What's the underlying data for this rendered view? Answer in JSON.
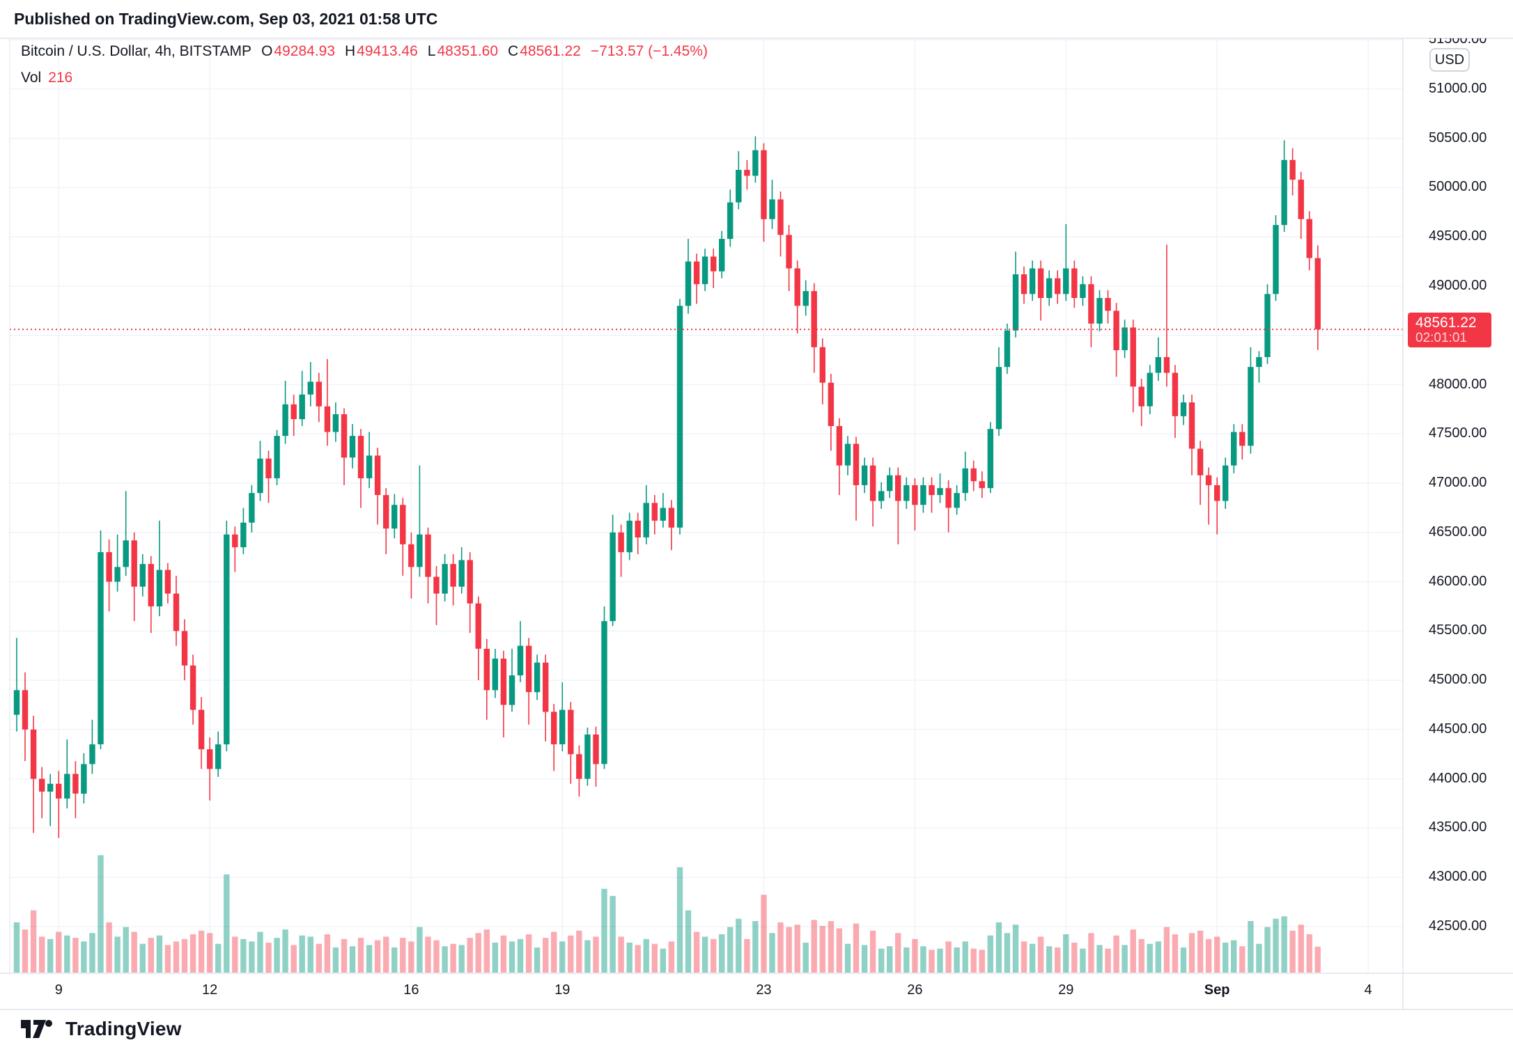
{
  "header": {
    "text": "Published on TradingView.com, Sep 03, 2021 01:58 UTC"
  },
  "legend": {
    "symbol": "Bitcoin / U.S. Dollar, 4h, BITSTAMP",
    "o_label": "O",
    "open": "49284.93",
    "h_label": "H",
    "high": "49413.46",
    "l_label": "L",
    "low": "48351.60",
    "c_label": "C",
    "close": "48561.22",
    "change": "−713.57 (−1.45%)",
    "vol_label": "Vol",
    "vol_value": "216"
  },
  "price_axis": {
    "currency": "USD",
    "last_price": "48561.22",
    "countdown": "02:01:01",
    "tick_labels": [
      51500,
      51000,
      50500,
      50000,
      49500,
      49000,
      48000,
      47500,
      47000,
      46500,
      46000,
      45500,
      45000,
      44500,
      44000,
      43500,
      43000,
      42500
    ]
  },
  "footer": {
    "brand": "TradingView"
  },
  "colors": {
    "up": "#089981",
    "down": "#f23645",
    "accent": "#f23645",
    "text": "#131722",
    "grid": "#f0f3fa",
    "border": "#e0e3eb",
    "vol_up": "rgba(8,153,129,0.45)",
    "vol_down": "rgba(242,54,69,0.42)"
  },
  "chart_data": {
    "type": "candlestick",
    "title": "Bitcoin / U.S. Dollar",
    "exchange": "BITSTAMP",
    "interval": "4h",
    "visible_range": "Aug 8 2021 04:00 UTC – Sep 4 2021",
    "current": {
      "open": 49284.93,
      "high": 49413.46,
      "low": 48351.6,
      "close": 48561.22,
      "change": -713.57,
      "change_pct": -1.45,
      "volume": 216
    },
    "y_axis": {
      "min": 42500,
      "max": 51500,
      "step": 500
    },
    "x_axis": {
      "ticks": [
        {
          "label": "9",
          "i": 5
        },
        {
          "label": "12",
          "i": 23
        },
        {
          "label": "16",
          "i": 47
        },
        {
          "label": "19",
          "i": 65
        },
        {
          "label": "23",
          "i": 89
        },
        {
          "label": "26",
          "i": 107
        },
        {
          "label": "29",
          "i": 125
        },
        {
          "label": "Sep",
          "i": 143,
          "emphasis": true
        },
        {
          "label": "4",
          "i": 161
        }
      ]
    },
    "candles": [
      [
        44650,
        45430,
        44480,
        44900,
        420
      ],
      [
        44900,
        45080,
        44180,
        44500,
        360
      ],
      [
        44500,
        44640,
        43450,
        44000,
        520
      ],
      [
        44000,
        44120,
        43600,
        43870,
        300
      ],
      [
        43870,
        44050,
        43520,
        43950,
        280
      ],
      [
        43950,
        44080,
        43400,
        43800,
        340
      ],
      [
        43800,
        44400,
        43700,
        44050,
        310
      ],
      [
        44050,
        44180,
        43600,
        43850,
        290
      ],
      [
        43850,
        44260,
        43750,
        44150,
        260
      ],
      [
        44150,
        44600,
        44050,
        44350,
        330
      ],
      [
        44350,
        46520,
        44300,
        46300,
        980
      ],
      [
        46300,
        46430,
        45700,
        46000,
        420
      ],
      [
        46000,
        46480,
        45900,
        46150,
        300
      ],
      [
        46150,
        46920,
        46060,
        46420,
        380
      ],
      [
        46420,
        46500,
        45600,
        45950,
        340
      ],
      [
        45950,
        46280,
        45850,
        46180,
        240
      ],
      [
        46180,
        46260,
        45480,
        45750,
        290
      ],
      [
        45750,
        46620,
        45650,
        46120,
        310
      ],
      [
        46120,
        46190,
        45780,
        45880,
        230
      ],
      [
        45880,
        46060,
        45350,
        45500,
        260
      ],
      [
        45500,
        45620,
        45000,
        45150,
        280
      ],
      [
        45150,
        45260,
        44550,
        44700,
        320
      ],
      [
        44700,
        44830,
        44100,
        44300,
        350
      ],
      [
        44300,
        44420,
        43780,
        44100,
        330
      ],
      [
        44100,
        44480,
        44020,
        44350,
        240
      ],
      [
        44350,
        46620,
        44280,
        46480,
        820
      ],
      [
        46480,
        46560,
        46100,
        46350,
        300
      ],
      [
        46350,
        46750,
        46280,
        46600,
        280
      ],
      [
        46600,
        46980,
        46500,
        46900,
        260
      ],
      [
        46900,
        47430,
        46820,
        47250,
        340
      ],
      [
        47250,
        47330,
        46800,
        47050,
        250
      ],
      [
        47050,
        47540,
        46980,
        47480,
        290
      ],
      [
        47480,
        48040,
        47400,
        47800,
        360
      ],
      [
        47800,
        47900,
        47480,
        47650,
        230
      ],
      [
        47650,
        48140,
        47580,
        47900,
        310
      ],
      [
        47900,
        48230,
        47780,
        48030,
        300
      ],
      [
        48030,
        48120,
        47620,
        47780,
        240
      ],
      [
        47780,
        48260,
        47380,
        47520,
        320
      ],
      [
        47520,
        47820,
        47420,
        47700,
        210
      ],
      [
        47700,
        47760,
        46980,
        47260,
        280
      ],
      [
        47260,
        47600,
        47150,
        47480,
        220
      ],
      [
        47480,
        47550,
        46750,
        47050,
        290
      ],
      [
        47050,
        47520,
        46950,
        47280,
        230
      ],
      [
        47280,
        47360,
        46580,
        46880,
        270
      ],
      [
        46880,
        46950,
        46280,
        46540,
        300
      ],
      [
        46540,
        46890,
        46440,
        46780,
        210
      ],
      [
        46780,
        46850,
        46060,
        46380,
        290
      ],
      [
        46380,
        46500,
        45830,
        46150,
        260
      ],
      [
        46150,
        47180,
        46050,
        46480,
        380
      ],
      [
        46480,
        46550,
        45780,
        46050,
        300
      ],
      [
        46050,
        46160,
        45560,
        45880,
        270
      ],
      [
        45880,
        46280,
        45800,
        46180,
        220
      ],
      [
        46180,
        46280,
        45760,
        45950,
        240
      ],
      [
        45950,
        46350,
        45880,
        46220,
        230
      ],
      [
        46220,
        46300,
        45480,
        45780,
        290
      ],
      [
        45780,
        45850,
        45000,
        45320,
        330
      ],
      [
        45320,
        45420,
        44600,
        44900,
        360
      ],
      [
        44900,
        45320,
        44820,
        45220,
        250
      ],
      [
        45220,
        45300,
        44420,
        44750,
        310
      ],
      [
        44750,
        45320,
        44680,
        45050,
        260
      ],
      [
        45050,
        45600,
        44980,
        45350,
        280
      ],
      [
        45350,
        45430,
        44550,
        44880,
        320
      ],
      [
        44880,
        45260,
        44800,
        45180,
        210
      ],
      [
        45180,
        45260,
        44380,
        44680,
        290
      ],
      [
        44680,
        44760,
        44080,
        44350,
        340
      ],
      [
        44350,
        44980,
        44280,
        44700,
        260
      ],
      [
        44700,
        44780,
        43950,
        44250,
        310
      ],
      [
        44250,
        44340,
        43820,
        44000,
        350
      ],
      [
        44000,
        44520,
        43930,
        44450,
        270
      ],
      [
        44450,
        44530,
        43920,
        44150,
        300
      ],
      [
        44150,
        45750,
        44100,
        45600,
        700
      ],
      [
        45600,
        46680,
        45550,
        46500,
        640
      ],
      [
        46500,
        46580,
        46050,
        46300,
        300
      ],
      [
        46300,
        46700,
        46220,
        46620,
        250
      ],
      [
        46620,
        46700,
        46280,
        46450,
        230
      ],
      [
        46450,
        46980,
        46380,
        46800,
        280
      ],
      [
        46800,
        46880,
        46480,
        46620,
        240
      ],
      [
        46620,
        46900,
        46550,
        46750,
        200
      ],
      [
        46750,
        46830,
        46320,
        46550,
        260
      ],
      [
        46550,
        48870,
        46480,
        48800,
        880
      ],
      [
        48800,
        49480,
        48720,
        49250,
        520
      ],
      [
        49250,
        49330,
        48820,
        49020,
        340
      ],
      [
        49020,
        49380,
        48950,
        49300,
        300
      ],
      [
        49300,
        49380,
        48980,
        49150,
        280
      ],
      [
        49150,
        49560,
        49080,
        49480,
        320
      ],
      [
        49480,
        49980,
        49400,
        49850,
        380
      ],
      [
        49850,
        50370,
        49780,
        50180,
        450
      ],
      [
        50180,
        50280,
        49980,
        50120,
        280
      ],
      [
        50120,
        50520,
        50050,
        50380,
        430
      ],
      [
        50380,
        50450,
        49450,
        49680,
        650
      ],
      [
        49680,
        50080,
        49580,
        49880,
        330
      ],
      [
        49880,
        49960,
        49300,
        49520,
        420
      ],
      [
        49520,
        49620,
        48950,
        49180,
        380
      ],
      [
        49180,
        49260,
        48520,
        48800,
        400
      ],
      [
        48800,
        49060,
        48700,
        48950,
        250
      ],
      [
        48950,
        49030,
        48120,
        48380,
        440
      ],
      [
        48380,
        48470,
        47800,
        48020,
        390
      ],
      [
        48020,
        48110,
        47330,
        47580,
        430
      ],
      [
        47580,
        47660,
        46880,
        47180,
        370
      ],
      [
        47180,
        47480,
        47080,
        47400,
        240
      ],
      [
        47400,
        47470,
        46620,
        46980,
        410
      ],
      [
        46980,
        47260,
        46900,
        47180,
        230
      ],
      [
        47180,
        47260,
        46560,
        46820,
        350
      ],
      [
        46820,
        47010,
        46740,
        46920,
        200
      ],
      [
        46920,
        47160,
        46850,
        47080,
        220
      ],
      [
        47080,
        47160,
        46380,
        46820,
        330
      ],
      [
        46820,
        47060,
        46740,
        46980,
        210
      ],
      [
        46980,
        47050,
        46520,
        46780,
        280
      ],
      [
        46780,
        47060,
        46700,
        46980,
        220
      ],
      [
        46980,
        47060,
        46700,
        46880,
        190
      ],
      [
        46880,
        47100,
        46800,
        46950,
        200
      ],
      [
        46950,
        47030,
        46500,
        46750,
        260
      ],
      [
        46750,
        46980,
        46680,
        46900,
        210
      ],
      [
        46900,
        47320,
        46820,
        47150,
        260
      ],
      [
        47150,
        47230,
        46920,
        47020,
        200
      ],
      [
        47020,
        47120,
        46850,
        46950,
        190
      ],
      [
        46950,
        47620,
        46900,
        47550,
        310
      ],
      [
        47550,
        48380,
        47480,
        48180,
        420
      ],
      [
        48180,
        48620,
        48110,
        48550,
        330
      ],
      [
        48550,
        49350,
        48480,
        49120,
        400
      ],
      [
        49120,
        49200,
        48820,
        48920,
        260
      ],
      [
        48920,
        49260,
        48850,
        49180,
        240
      ],
      [
        49180,
        49260,
        48650,
        48880,
        300
      ],
      [
        48880,
        49160,
        48800,
        49080,
        220
      ],
      [
        49080,
        49160,
        48820,
        48920,
        210
      ],
      [
        48920,
        49630,
        48850,
        49180,
        320
      ],
      [
        49180,
        49260,
        48780,
        48880,
        250
      ],
      [
        48880,
        49100,
        48800,
        49020,
        200
      ],
      [
        49020,
        49100,
        48380,
        48620,
        330
      ],
      [
        48620,
        48960,
        48540,
        48880,
        230
      ],
      [
        48880,
        48960,
        48620,
        48750,
        200
      ],
      [
        48750,
        48830,
        48080,
        48350,
        310
      ],
      [
        48350,
        48660,
        48270,
        48580,
        230
      ],
      [
        48580,
        48660,
        47720,
        47980,
        360
      ],
      [
        47980,
        48060,
        47580,
        47780,
        280
      ],
      [
        47780,
        48200,
        47700,
        48120,
        240
      ],
      [
        48120,
        48480,
        48040,
        48280,
        260
      ],
      [
        48280,
        49420,
        47980,
        48120,
        380
      ],
      [
        48120,
        48200,
        47460,
        47680,
        320
      ],
      [
        47680,
        47900,
        47590,
        47820,
        210
      ],
      [
        47820,
        47900,
        47080,
        47350,
        330
      ],
      [
        47350,
        47430,
        46780,
        47080,
        350
      ],
      [
        47080,
        47160,
        46580,
        46980,
        280
      ],
      [
        46980,
        47060,
        46480,
        46820,
        300
      ],
      [
        46820,
        47260,
        46740,
        47180,
        250
      ],
      [
        47180,
        47600,
        47100,
        47520,
        270
      ],
      [
        47520,
        47600,
        47240,
        47380,
        220
      ],
      [
        47380,
        48380,
        47300,
        48180,
        430
      ],
      [
        48180,
        48340,
        48020,
        48280,
        240
      ],
      [
        48280,
        49020,
        48210,
        48920,
        380
      ],
      [
        48920,
        49720,
        48850,
        49620,
        450
      ],
      [
        49620,
        50480,
        49550,
        50280,
        470
      ],
      [
        50280,
        50400,
        49920,
        50080,
        350
      ],
      [
        50080,
        50160,
        49480,
        49680,
        400
      ],
      [
        49680,
        49760,
        49160,
        49285,
        320
      ],
      [
        49284.93,
        49413.46,
        48351.6,
        48561.22,
        216
      ]
    ]
  }
}
